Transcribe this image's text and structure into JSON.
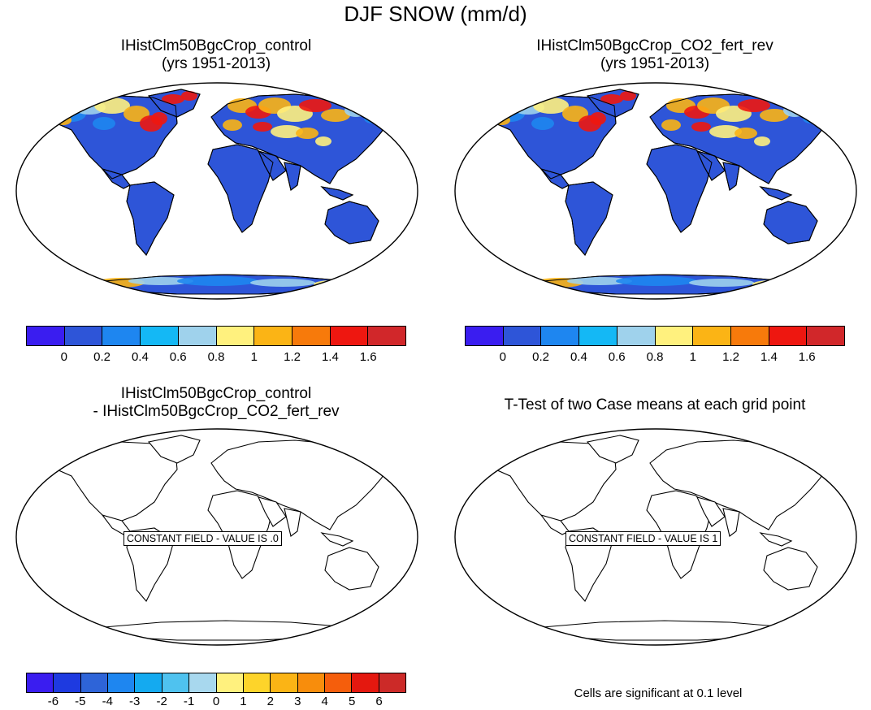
{
  "title": "DJF SNOW (mm/d)",
  "panels": [
    {
      "title_line1": "IHistClm50BgcCrop_control",
      "title_line2": "(yrs 1951-2013)"
    },
    {
      "title_line1": "IHistClm50BgcCrop_CO2_fert_rev",
      "title_line2": "(yrs 1951-2013)"
    },
    {
      "title_line1": "IHistClm50BgcCrop_control",
      "title_line2": "- IHistClm50BgcCrop_CO2_fert_rev",
      "label": "CONSTANT FIELD - VALUE IS .0"
    },
    {
      "title_line1": "T-Test of two Case means at each grid point",
      "title_line2": "",
      "label": "CONSTANT FIELD - VALUE IS 1"
    }
  ],
  "colorbar_top": {
    "labels": [
      "0",
      "0.2",
      "0.4",
      "0.6",
      "0.8",
      "1",
      "1.2",
      "1.4",
      "1.6"
    ],
    "colors": [
      "#3a1df0",
      "#2e55d8",
      "#1e86f0",
      "#14b8f5",
      "#9fd2ec",
      "#fff17e",
      "#fbb415",
      "#f77a0b",
      "#ee1710",
      "#d1272a"
    ]
  },
  "colorbar_bottom": {
    "labels": [
      "-6",
      "-5",
      "-4",
      "-3",
      "-2",
      "-1",
      "0",
      "1",
      "2",
      "3",
      "4",
      "5",
      "6"
    ],
    "colors": [
      "#3a1df0",
      "#1e3ae0",
      "#2e64d8",
      "#1e86f0",
      "#14aaf0",
      "#4fc2ef",
      "#a8d8ee",
      "#fff17e",
      "#fdd42a",
      "#fbb415",
      "#f88d0c",
      "#f55e0c",
      "#e4180f",
      "#cc2a28"
    ]
  },
  "note": "Cells are significant at 0.1 level",
  "map_colors": {
    "land": "#2e55d8",
    "mid": "#1e86f0",
    "light": "#9fd2ec",
    "yellow": "#fff17e",
    "orange": "#fbb415",
    "red": "#ee1710"
  }
}
